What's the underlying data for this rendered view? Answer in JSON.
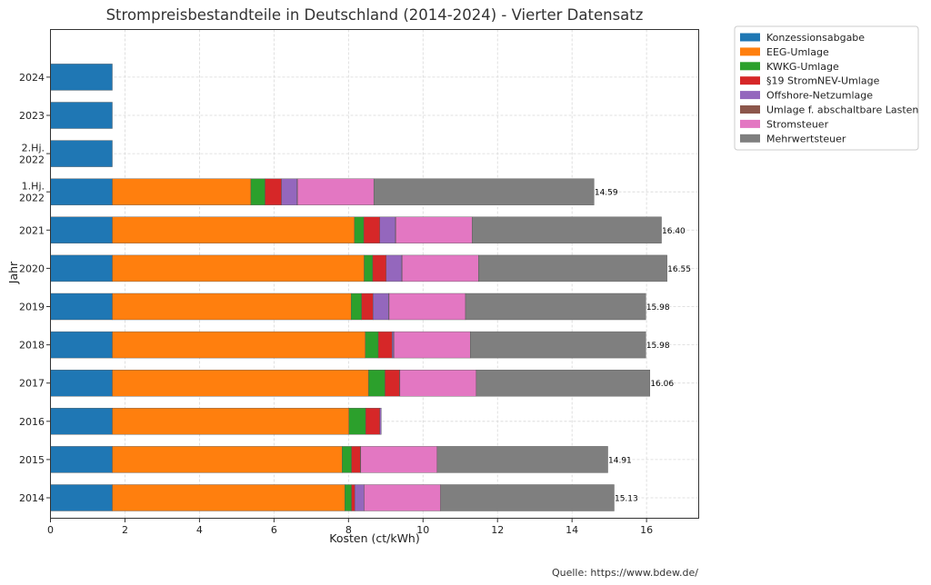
{
  "chart_data": {
    "type": "bar",
    "orientation": "horizontal",
    "stacked": true,
    "title": "Strompreisbestandteile in Deutschland (2014-2024) - Vierter Datensatz",
    "xlabel": "Kosten (ct/kWh)",
    "ylabel": "Jahr",
    "xlim": [
      0,
      17.4
    ],
    "xticks": [
      "0",
      "2",
      "4",
      "6",
      "8",
      "10",
      "12",
      "14",
      "16"
    ],
    "grid": true,
    "legend_position": "outside-top-right",
    "source": "Quelle: https://www.bdew.de/",
    "categories": [
      "2014",
      "2015",
      "2016",
      "2017",
      "2018",
      "2019",
      "2020",
      "2021",
      "1.Hj.\n2022",
      "2.Hj.\n2022",
      "2023",
      "2024"
    ],
    "series": [
      {
        "name": "Konzessionsabgabe",
        "color": "#1f77b4",
        "values": [
          1.66,
          1.66,
          1.66,
          1.66,
          1.66,
          1.66,
          1.66,
          1.66,
          1.66,
          1.66,
          1.66,
          1.66
        ]
      },
      {
        "name": "EEG-Umlage",
        "color": "#ff7f0e",
        "values": [
          6.24,
          6.17,
          6.35,
          6.88,
          6.79,
          6.41,
          6.76,
          6.5,
          3.72,
          0,
          0,
          0
        ]
      },
      {
        "name": "KWKG-Umlage",
        "color": "#2ca02c",
        "values": [
          0.18,
          0.25,
          0.45,
          0.44,
          0.35,
          0.28,
          0.23,
          0.25,
          0.38,
          0,
          0,
          0
        ]
      },
      {
        "name": "§19 StromNEV-Umlage",
        "color": "#d62728",
        "values": [
          0.09,
          0.24,
          0.38,
          0.39,
          0.37,
          0.31,
          0.36,
          0.43,
          0.44,
          0,
          0,
          0
        ]
      },
      {
        "name": "Offshore-Netzumlage",
        "color": "#9467bd",
        "values": [
          0.25,
          -0.05,
          0.04,
          -0.03,
          0.04,
          0.42,
          0.42,
          0.42,
          0.42,
          0,
          0,
          0
        ]
      },
      {
        "name": "Umlage f. abschaltbare Lasten",
        "color": "#8c564b",
        "values": [
          0,
          0.01,
          0,
          0.01,
          0.01,
          0.01,
          0.01,
          0.01,
          0.01,
          0,
          0,
          0
        ]
      },
      {
        "name": "Stromsteuer",
        "color": "#e377c2",
        "values": [
          2.05,
          2.05,
          0,
          2.05,
          2.05,
          2.05,
          2.05,
          2.05,
          2.05,
          0,
          0,
          0
        ]
      },
      {
        "name": "Mehrwertsteuer",
        "color": "#7f7f7f",
        "values": [
          4.66,
          4.58,
          0,
          4.66,
          4.71,
          4.84,
          5.06,
          5.08,
          5.91,
          0,
          0,
          0
        ]
      }
    ],
    "total_labels": [
      "15.13",
      "14.91",
      "",
      "16.06",
      "15.98",
      "15.98",
      "16.55",
      "16.40",
      "14.59",
      "",
      "",
      ""
    ]
  }
}
